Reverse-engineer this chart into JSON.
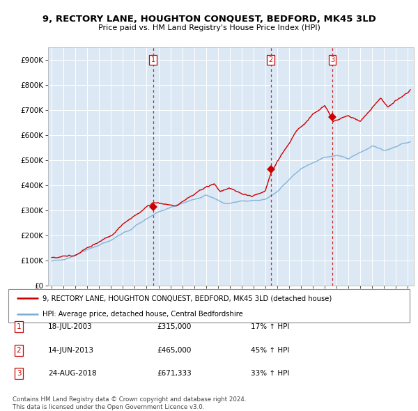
{
  "title": "9, RECTORY LANE, HOUGHTON CONQUEST, BEDFORD, MK45 3LD",
  "subtitle": "Price paid vs. HM Land Registry's House Price Index (HPI)",
  "hpi_label": "HPI: Average price, detached house, Central Bedfordshire",
  "property_label": "9, RECTORY LANE, HOUGHTON CONQUEST, BEDFORD, MK45 3LD (detached house)",
  "bg_color": "#dce9f5",
  "red_line_color": "#cc0000",
  "blue_line_color": "#7aadd4",
  "dashed_line_color": "#cc0000",
  "marker_color": "#cc0000",
  "transactions": [
    {
      "num": 1,
      "date": "18-JUL-2003",
      "price": 315000,
      "pct": "17%",
      "direction": "↑",
      "x_year": 2003.54
    },
    {
      "num": 2,
      "date": "14-JUN-2013",
      "price": 465000,
      "pct": "45%",
      "direction": "↑",
      "x_year": 2013.45
    },
    {
      "num": 3,
      "date": "24-AUG-2018",
      "price": 671333,
      "pct": "33%",
      "direction": "↑",
      "x_year": 2018.65
    }
  ],
  "ylim": [
    0,
    950000
  ],
  "xlim_start": 1994.7,
  "xlim_end": 2025.5,
  "yticks": [
    0,
    100000,
    200000,
    300000,
    400000,
    500000,
    600000,
    700000,
    800000,
    900000
  ],
  "ytick_labels": [
    "£0",
    "£100K",
    "£200K",
    "£300K",
    "£400K",
    "£500K",
    "£600K",
    "£700K",
    "£800K",
    "£900K"
  ],
  "footer_line1": "Contains HM Land Registry data © Crown copyright and database right 2024.",
  "footer_line2": "This data is licensed under the Open Government Licence v3.0."
}
